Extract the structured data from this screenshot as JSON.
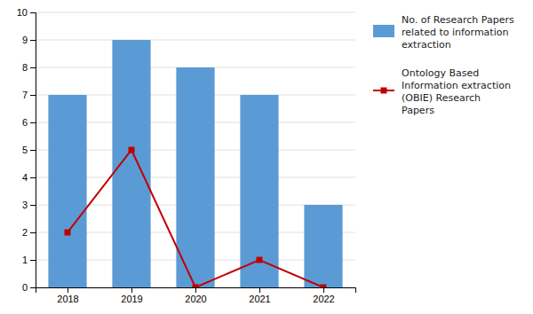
{
  "chart_data": {
    "type": "bar",
    "x": [
      2018,
      2019,
      2020,
      2021,
      2022
    ],
    "xlim": [
      2017.5,
      2022.5
    ],
    "xticks": [
      2018,
      2019,
      2020,
      2021,
      2022
    ],
    "ylim": [
      0,
      10
    ],
    "yticks": [
      0,
      1,
      2,
      3,
      4,
      5,
      6,
      7,
      8,
      9,
      10
    ],
    "grid": true,
    "legend": "right",
    "series": [
      {
        "name": "No. of Research Papers\nrelated to information\nextraction",
        "type": "bar",
        "color": "#5B9BD5",
        "values": [
          7,
          9,
          8,
          7,
          3
        ]
      },
      {
        "name": "Ontology Based\nInformation extraction\n(OBIE) Research\nPapers",
        "type": "line",
        "color": "#C00000",
        "marker": "square",
        "values": [
          2,
          5,
          0,
          1,
          0
        ]
      }
    ]
  }
}
